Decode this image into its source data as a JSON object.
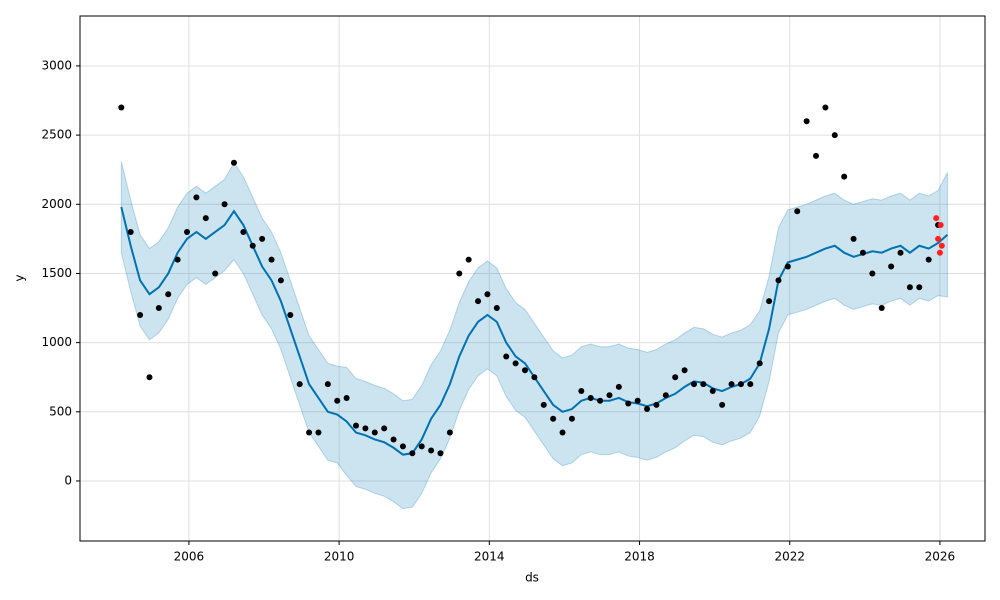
{
  "chart_data": {
    "type": "forecast",
    "xlabel": "ds",
    "ylabel": "y",
    "xlim": [
      2003.1,
      2027.2
    ],
    "xticks": [
      2006,
      2010,
      2014,
      2018,
      2022,
      2026
    ],
    "ylim": [
      -434,
      3361
    ],
    "yticks": [
      0,
      500,
      1000,
      1500,
      2000,
      2500,
      3000
    ],
    "grid": true,
    "series": [
      {
        "kind": "band",
        "color": "#0072b2",
        "x": [
          2004.2,
          2004.45,
          2004.7,
          2004.95,
          2005.2,
          2005.45,
          2005.7,
          2005.95,
          2006.2,
          2006.45,
          2006.7,
          2006.95,
          2007.2,
          2007.45,
          2007.7,
          2007.95,
          2008.2,
          2008.45,
          2008.7,
          2008.95,
          2009.2,
          2009.45,
          2009.7,
          2009.95,
          2010.2,
          2010.45,
          2010.7,
          2010.95,
          2011.2,
          2011.45,
          2011.7,
          2011.95,
          2012.2,
          2012.45,
          2012.7,
          2012.95,
          2013.2,
          2013.45,
          2013.7,
          2013.95,
          2014.2,
          2014.45,
          2014.7,
          2014.95,
          2015.2,
          2015.45,
          2015.7,
          2015.95,
          2016.2,
          2016.45,
          2016.7,
          2016.95,
          2017.2,
          2017.45,
          2017.7,
          2017.95,
          2018.2,
          2018.45,
          2018.7,
          2018.95,
          2019.2,
          2019.45,
          2019.7,
          2019.95,
          2020.2,
          2020.45,
          2020.7,
          2020.95,
          2021.2,
          2021.45,
          2021.7,
          2021.95,
          2022.2,
          2022.45,
          2022.7,
          2022.95,
          2023.2,
          2023.45,
          2023.7,
          2023.95,
          2024.2,
          2024.45,
          2024.7,
          2024.95,
          2025.2,
          2025.45,
          2025.7,
          2025.95,
          2026.2
        ],
        "lower": [
          1650,
          1370,
          1120,
          1020,
          1070,
          1170,
          1320,
          1420,
          1470,
          1420,
          1470,
          1520,
          1600,
          1500,
          1350,
          1200,
          1100,
          950,
          750,
          550,
          350,
          250,
          150,
          130,
          40,
          -40,
          -60,
          -90,
          -110,
          -150,
          -200,
          -190,
          -90,
          60,
          160,
          310,
          510,
          660,
          760,
          810,
          760,
          610,
          510,
          460,
          360,
          260,
          160,
          110,
          130,
          190,
          210,
          190,
          190,
          210,
          180,
          170,
          150,
          170,
          210,
          240,
          290,
          330,
          320,
          280,
          260,
          290,
          310,
          350,
          470,
          720,
          1070,
          1200,
          1220,
          1240,
          1270,
          1300,
          1320,
          1270,
          1240,
          1260,
          1280,
          1270,
          1300,
          1320,
          1270,
          1320,
          1300,
          1340,
          1330
        ],
        "upper": [
          2310,
          2030,
          1780,
          1680,
          1730,
          1830,
          1980,
          2080,
          2130,
          2080,
          2130,
          2180,
          2300,
          2200,
          2050,
          1900,
          1800,
          1650,
          1450,
          1250,
          1050,
          950,
          850,
          830,
          820,
          740,
          720,
          690,
          670,
          630,
          580,
          590,
          690,
          840,
          940,
          1090,
          1290,
          1440,
          1540,
          1590,
          1540,
          1390,
          1290,
          1240,
          1140,
          1040,
          940,
          890,
          910,
          970,
          990,
          970,
          970,
          990,
          960,
          950,
          930,
          950,
          990,
          1020,
          1070,
          1110,
          1100,
          1060,
          1040,
          1070,
          1090,
          1130,
          1230,
          1480,
          1830,
          1960,
          1980,
          2000,
          2030,
          2060,
          2080,
          2030,
          2000,
          2020,
          2040,
          2030,
          2060,
          2080,
          2030,
          2080,
          2060,
          2100,
          2230
        ]
      },
      {
        "kind": "line",
        "color": "#0072b2",
        "x": [
          2004.2,
          2004.45,
          2004.7,
          2004.95,
          2005.2,
          2005.45,
          2005.7,
          2005.95,
          2006.2,
          2006.45,
          2006.7,
          2006.95,
          2007.2,
          2007.45,
          2007.7,
          2007.95,
          2008.2,
          2008.45,
          2008.7,
          2008.95,
          2009.2,
          2009.45,
          2009.7,
          2009.95,
          2010.2,
          2010.45,
          2010.7,
          2010.95,
          2011.2,
          2011.45,
          2011.7,
          2011.95,
          2012.2,
          2012.45,
          2012.7,
          2012.95,
          2013.2,
          2013.45,
          2013.7,
          2013.95,
          2014.2,
          2014.45,
          2014.7,
          2014.95,
          2015.2,
          2015.45,
          2015.7,
          2015.95,
          2016.2,
          2016.45,
          2016.7,
          2016.95,
          2017.2,
          2017.45,
          2017.7,
          2017.95,
          2018.2,
          2018.45,
          2018.7,
          2018.95,
          2019.2,
          2019.45,
          2019.7,
          2019.95,
          2020.2,
          2020.45,
          2020.7,
          2020.95,
          2021.2,
          2021.45,
          2021.7,
          2021.95,
          2022.2,
          2022.45,
          2022.7,
          2022.95,
          2023.2,
          2023.45,
          2023.7,
          2023.95,
          2024.2,
          2024.45,
          2024.7,
          2024.95,
          2025.2,
          2025.45,
          2025.7,
          2025.95,
          2026.2
        ],
        "values": [
          1980,
          1700,
          1450,
          1350,
          1400,
          1500,
          1650,
          1750,
          1800,
          1750,
          1800,
          1850,
          1950,
          1850,
          1700,
          1550,
          1450,
          1300,
          1100,
          900,
          700,
          600,
          500,
          480,
          430,
          350,
          330,
          300,
          280,
          240,
          190,
          200,
          300,
          450,
          550,
          700,
          900,
          1050,
          1150,
          1200,
          1150,
          1000,
          900,
          850,
          750,
          650,
          550,
          500,
          520,
          580,
          600,
          580,
          580,
          600,
          570,
          560,
          540,
          560,
          600,
          630,
          680,
          720,
          710,
          670,
          650,
          680,
          700,
          740,
          850,
          1100,
          1450,
          1580,
          1600,
          1620,
          1650,
          1680,
          1700,
          1650,
          1620,
          1640,
          1660,
          1650,
          1680,
          1700,
          1650,
          1700,
          1680,
          1720,
          1780
        ]
      },
      {
        "kind": "points",
        "color": "#000000",
        "x": [
          2004.2,
          2004.45,
          2004.7,
          2004.95,
          2005.2,
          2005.45,
          2005.7,
          2005.95,
          2006.2,
          2006.45,
          2006.7,
          2006.95,
          2007.2,
          2007.45,
          2007.7,
          2007.95,
          2008.2,
          2008.45,
          2008.7,
          2008.95,
          2009.2,
          2009.45,
          2009.7,
          2009.95,
          2010.2,
          2010.45,
          2010.7,
          2010.95,
          2011.2,
          2011.45,
          2011.7,
          2011.95,
          2012.2,
          2012.45,
          2012.7,
          2012.95,
          2013.2,
          2013.45,
          2013.7,
          2013.95,
          2014.2,
          2014.45,
          2014.7,
          2014.95,
          2015.2,
          2015.45,
          2015.7,
          2015.95,
          2016.2,
          2016.45,
          2016.7,
          2016.95,
          2017.2,
          2017.45,
          2017.7,
          2017.95,
          2018.2,
          2018.45,
          2018.7,
          2018.95,
          2019.2,
          2019.45,
          2019.7,
          2019.95,
          2020.2,
          2020.45,
          2020.7,
          2020.95,
          2021.2,
          2021.45,
          2021.7,
          2021.95,
          2022.2,
          2022.45,
          2022.7,
          2022.95,
          2023.2,
          2023.45,
          2023.7,
          2023.95,
          2024.2,
          2024.45,
          2024.7,
          2024.95,
          2025.2,
          2025.45,
          2025.7,
          2025.95
        ],
        "values": [
          2700,
          1800,
          1200,
          750,
          1250,
          1350,
          1600,
          1800,
          2050,
          1900,
          1500,
          2000,
          2300,
          1800,
          1700,
          1750,
          1600,
          1450,
          1200,
          700,
          350,
          350,
          700,
          580,
          600,
          400,
          380,
          350,
          380,
          300,
          250,
          200,
          250,
          220,
          200,
          350,
          1500,
          1600,
          1300,
          1350,
          1250,
          900,
          850,
          800,
          750,
          550,
          450,
          350,
          450,
          650,
          600,
          580,
          620,
          680,
          560,
          580,
          520,
          550,
          620,
          750,
          800,
          700,
          700,
          650,
          550,
          700,
          700,
          700,
          850,
          1300,
          1450,
          1550,
          1950,
          2600,
          2350,
          2700,
          2500,
          2200,
          1750,
          1650,
          1500,
          1250,
          1550,
          1650,
          1400,
          1400,
          1600,
          1850
        ]
      },
      {
        "kind": "points",
        "color": "#ff2020",
        "x": [
          2025.9,
          2025.95,
          2026.0,
          2026.02,
          2026.05
        ],
        "values": [
          1900,
          1750,
          1650,
          1850,
          1700
        ]
      }
    ]
  }
}
